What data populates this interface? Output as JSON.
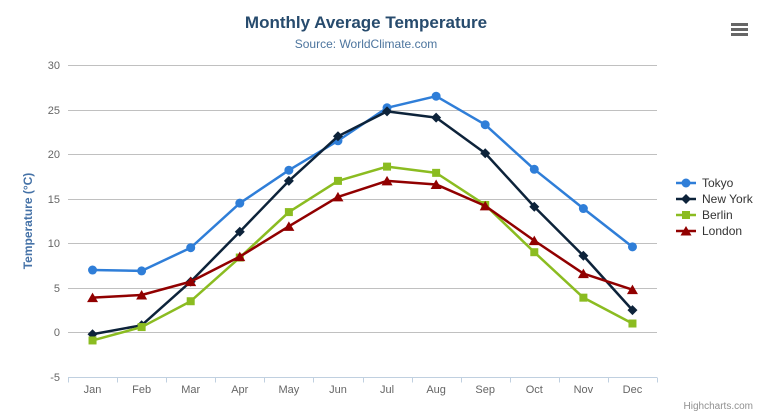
{
  "header": {
    "context_menu_tooltip": "Chart context menu"
  },
  "credits": {
    "label": "Highcharts.com"
  },
  "theme": {
    "background_color": "#ffffff",
    "title_color": "#274b6d",
    "subtitle_color": "#4d759e",
    "axis_title_color": "#4572a7",
    "axis_label_color": "#666666",
    "grid_color": "#c0c0c0",
    "axis_line_color": "#c0d0e0",
    "legend_text_color": "#333333",
    "credits_color": "#909090",
    "menu_icon_color": "#666666"
  },
  "chart_data": {
    "type": "line",
    "title": "Monthly Average Temperature",
    "subtitle": "Source: WorldClimate.com",
    "categories": [
      "Jan",
      "Feb",
      "Mar",
      "Apr",
      "May",
      "Jun",
      "Jul",
      "Aug",
      "Sep",
      "Oct",
      "Nov",
      "Dec"
    ],
    "xlabel": "",
    "ylabel": "Temperature (°C)",
    "ylim": [
      -5,
      30
    ],
    "ytick_step": 5,
    "grid": true,
    "legend_position": "right",
    "series": [
      {
        "name": "Tokyo",
        "color": "#2f7ed8",
        "marker": "circle",
        "values": [
          7.0,
          6.9,
          9.5,
          14.5,
          18.2,
          21.5,
          25.2,
          26.5,
          23.3,
          18.3,
          13.9,
          9.6
        ]
      },
      {
        "name": "New York",
        "color": "#0d233a",
        "marker": "diamond",
        "values": [
          -0.2,
          0.8,
          5.7,
          11.3,
          17.0,
          22.0,
          24.8,
          24.1,
          20.1,
          14.1,
          8.6,
          2.5
        ]
      },
      {
        "name": "Berlin",
        "color": "#8bbc21",
        "marker": "square",
        "values": [
          -0.9,
          0.6,
          3.5,
          8.4,
          13.5,
          17.0,
          18.6,
          17.9,
          14.3,
          9.0,
          3.9,
          1.0
        ]
      },
      {
        "name": "London",
        "color": "#910000",
        "marker": "triangle",
        "values": [
          3.9,
          4.2,
          5.7,
          8.5,
          11.9,
          15.2,
          17.0,
          16.6,
          14.2,
          10.3,
          6.6,
          4.8
        ]
      }
    ]
  }
}
